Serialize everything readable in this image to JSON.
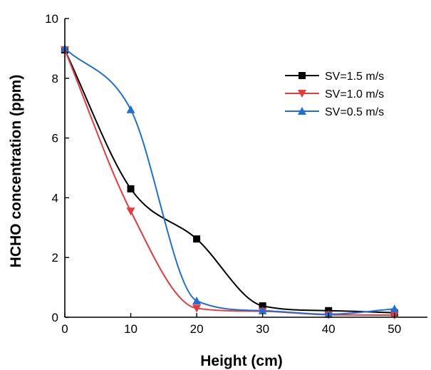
{
  "chart_data": {
    "type": "line",
    "title": "",
    "xlabel": "Height (cm)",
    "ylabel": "HCHO concentration (ppm)",
    "xlim": [
      0,
      55
    ],
    "ylim": [
      0,
      10
    ],
    "xticks": [
      0,
      10,
      20,
      30,
      40,
      50
    ],
    "yticks": [
      0,
      2,
      4,
      6,
      8,
      10
    ],
    "x": [
      0,
      10,
      20,
      30,
      40,
      50
    ],
    "grid": false,
    "legend_position": "top-right",
    "series": [
      {
        "name": "SV=1.5 m/s",
        "color": "#000000",
        "marker": "square",
        "values": [
          8.95,
          4.3,
          2.62,
          0.38,
          0.22,
          0.15
        ]
      },
      {
        "name": "SV=1.0 m/s",
        "color": "#e8393b",
        "marker": "triangle-down",
        "values": [
          8.95,
          3.55,
          0.3,
          0.2,
          0.08,
          0.07
        ]
      },
      {
        "name": "SV=0.5 m/s",
        "color": "#1f6fd6",
        "marker": "triangle-up",
        "values": [
          9.0,
          6.95,
          0.55,
          0.22,
          0.1,
          0.28
        ]
      }
    ]
  }
}
